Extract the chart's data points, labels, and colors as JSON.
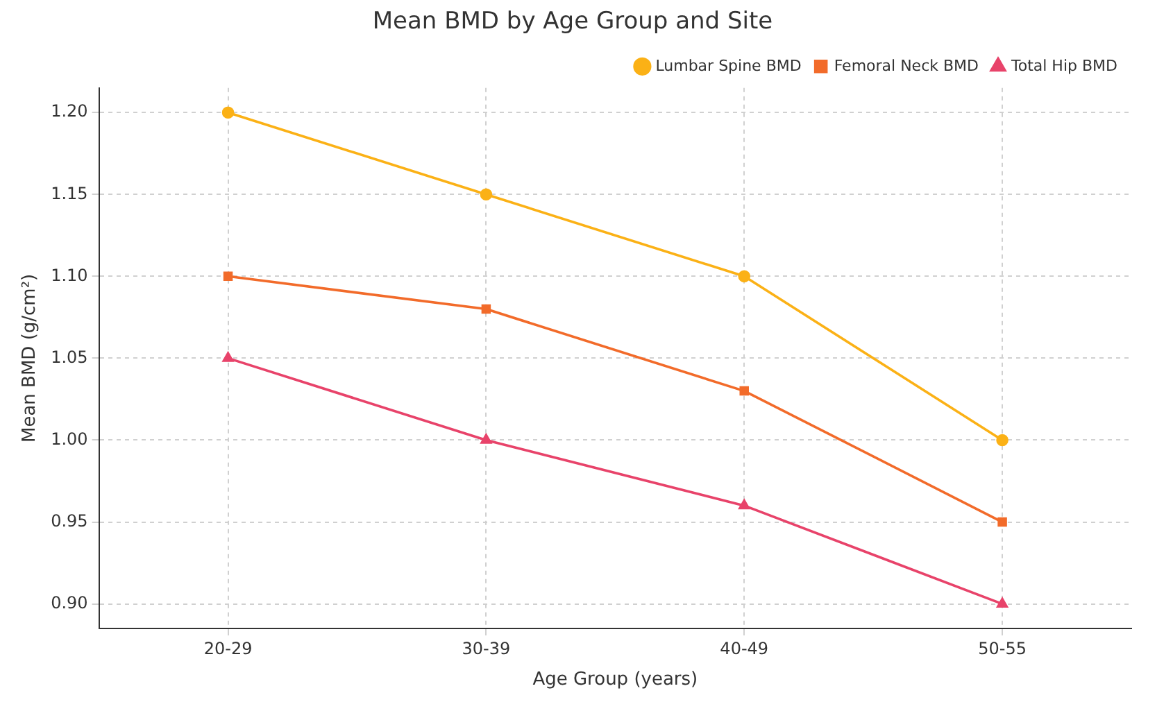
{
  "chart_data": {
    "type": "line",
    "title": "Mean BMD by Age Group and Site",
    "xlabel": "Age Group (years)",
    "ylabel": "Mean BMD (g/cm²)",
    "categories": [
      "20-29",
      "30-39",
      "40-49",
      "50-55"
    ],
    "series": [
      {
        "name": "Lumbar Spine BMD",
        "color": "#fbb116",
        "marker": "circle",
        "values": [
          1.2,
          1.15,
          1.1,
          1.0
        ]
      },
      {
        "name": "Femoral Neck BMD",
        "color": "#f26b2a",
        "marker": "square",
        "values": [
          1.1,
          1.08,
          1.03,
          0.95
        ]
      },
      {
        "name": "Total Hip BMD",
        "color": "#e8436a",
        "marker": "triangle",
        "values": [
          1.05,
          1.0,
          0.96,
          0.9
        ]
      }
    ],
    "ylim": [
      0.885,
      1.215
    ],
    "yticks": [
      {
        "value": 0.9,
        "label": "0.90"
      },
      {
        "value": 0.95,
        "label": "0.95"
      },
      {
        "value": 1,
        "label": "1.00"
      },
      {
        "value": 1.05,
        "label": "1.05"
      },
      {
        "value": 1.1,
        "label": "1.10"
      },
      {
        "value": 1.15,
        "label": "1.15"
      },
      {
        "value": 1.2,
        "label": "1.20"
      }
    ],
    "grid": true,
    "legend": "top right",
    "line_style": "solid"
  }
}
